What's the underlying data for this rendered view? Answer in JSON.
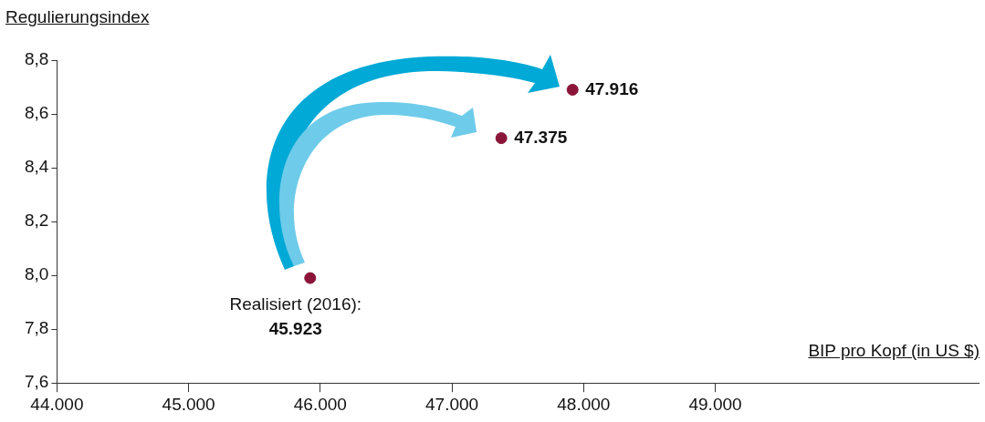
{
  "chart_data": {
    "type": "scatter",
    "xlabel": "BIP pro Kopf (in US $)",
    "ylabel": "Regulierungsindex",
    "x": [
      45923,
      47375,
      47916
    ],
    "values": [
      7.99,
      8.51,
      8.69
    ],
    "color": "#8b1538",
    "marker": "circle",
    "grid": false,
    "xlim": [
      44000,
      51000
    ],
    "ylim": [
      7.6,
      8.8
    ],
    "xticks": [
      {
        "value": 44000,
        "label": "44.000"
      },
      {
        "value": 45000,
        "label": "45.000"
      },
      {
        "value": 46000,
        "label": "46.000"
      },
      {
        "value": 47000,
        "label": "47.000"
      },
      {
        "value": 48000,
        "label": "48.000"
      },
      {
        "value": 49000,
        "label": "49.000"
      }
    ],
    "yticks": [
      {
        "value": 7.6,
        "label": "7,6"
      },
      {
        "value": 7.8,
        "label": "7,8"
      },
      {
        "value": 8.0,
        "label": "8,0"
      },
      {
        "value": 8.2,
        "label": "8,2"
      },
      {
        "value": 8.4,
        "label": "8,4"
      },
      {
        "value": 8.6,
        "label": "8,6"
      },
      {
        "value": 8.8,
        "label": "8,8"
      }
    ],
    "annotations": [
      {
        "text": "Realisiert (2016):",
        "x": 45923,
        "y": 7.99
      },
      {
        "text": "45.923",
        "x": 45923,
        "y": 7.99
      },
      {
        "text": "47.375",
        "x": 47375,
        "y": 8.51
      },
      {
        "text": "47.916",
        "x": 47916,
        "y": 8.69
      }
    ]
  }
}
